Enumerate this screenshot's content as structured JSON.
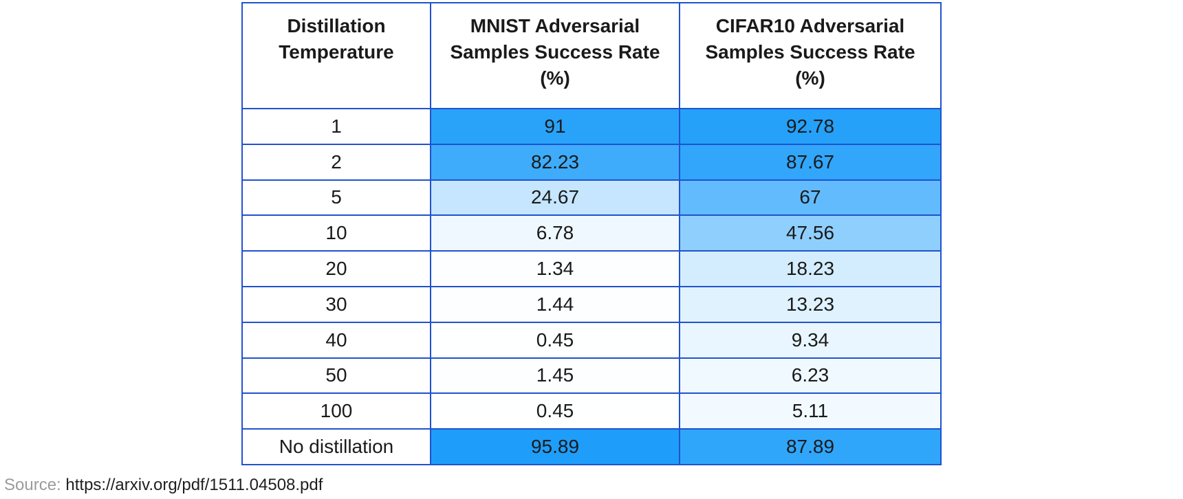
{
  "chart_data": {
    "type": "heatmap",
    "title": "",
    "columns": [
      {
        "label": "Distillation Temperature",
        "lines": [
          "Distillation",
          "Temperature"
        ]
      },
      {
        "label": "MNIST Adversarial Samples Success Rate (%)",
        "lines": [
          "MNIST Adversarial",
          "Samples Success Rate",
          "(%)"
        ]
      },
      {
        "label": "CIFAR10 Adversarial Samples Success Rate (%)",
        "lines": [
          "CIFAR10 Adversarial",
          "Samples Success Rate",
          "(%)"
        ]
      }
    ],
    "rows": [
      {
        "temperature": "1",
        "mnist": 91,
        "cifar10": 92.78
      },
      {
        "temperature": "2",
        "mnist": 82.23,
        "cifar10": 87.67
      },
      {
        "temperature": "5",
        "mnist": 24.67,
        "cifar10": 67
      },
      {
        "temperature": "10",
        "mnist": 6.78,
        "cifar10": 47.56
      },
      {
        "temperature": "20",
        "mnist": 1.34,
        "cifar10": 18.23
      },
      {
        "temperature": "30",
        "mnist": 1.44,
        "cifar10": 13.23
      },
      {
        "temperature": "40",
        "mnist": 0.45,
        "cifar10": 9.34
      },
      {
        "temperature": "50",
        "mnist": 1.45,
        "cifar10": 6.23
      },
      {
        "temperature": "100",
        "mnist": 0.45,
        "cifar10": 5.11
      },
      {
        "temperature": "No distillation",
        "mnist": 95.89,
        "cifar10": 87.89
      }
    ],
    "heat_columns": [
      "mnist",
      "cifar10"
    ],
    "value_range": [
      0,
      100
    ],
    "colorscale": {
      "min": "#FFFFFF",
      "max": "#149AFA"
    }
  },
  "colors": {
    "border": "#2052CE",
    "text": "#1A1A1A"
  },
  "source": {
    "label": "Source:",
    "url": "https://arxiv.org/pdf/1511.04508.pdf"
  }
}
